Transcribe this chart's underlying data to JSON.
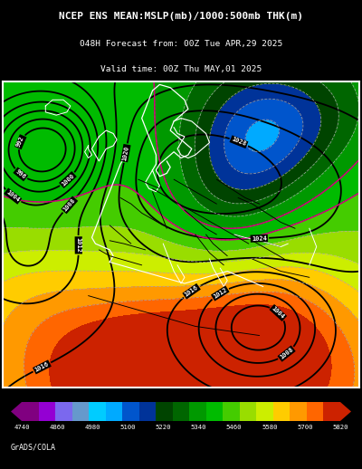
{
  "title_line1": "NCEP ENS MEAN:MSLP(mb)/1000:500mb THK(m)",
  "title_line2": "048H Forecast from: 00Z Tue APR,29 2025",
  "title_line3": "Valid time: 00Z Thu MAY,01 2025",
  "grads_label": "GrADS/COLA",
  "background_color": "#000000",
  "colorbar_values": [
    4740,
    4860,
    4980,
    5100,
    5220,
    5340,
    5460,
    5580,
    5700,
    5820
  ],
  "colorbar_colors": [
    "#800080",
    "#9400D3",
    "#7B68EE",
    "#6699CC",
    "#00CCFF",
    "#00AAFF",
    "#0055CC",
    "#003399",
    "#004400",
    "#007700",
    "#00AA00",
    "#33CC00",
    "#99DD00",
    "#CCEE00",
    "#FFCC00",
    "#FF9900",
    "#FF6600",
    "#EE3300",
    "#CC0000"
  ],
  "fig_width": 4.0,
  "fig_height": 5.18,
  "dpi": 100
}
